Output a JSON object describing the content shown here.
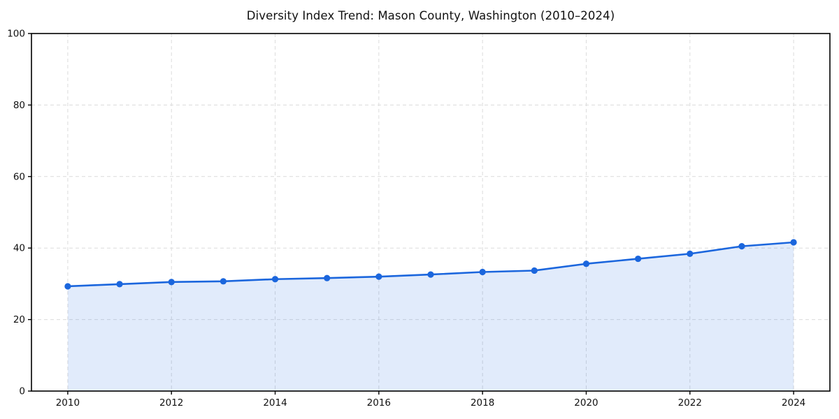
{
  "chart_data": {
    "type": "line",
    "title": "Diversity Index Trend: Mason County, Washington (2010–2024)",
    "xlabel": "",
    "ylabel": "",
    "x": [
      2010,
      2011,
      2012,
      2013,
      2014,
      2015,
      2016,
      2017,
      2018,
      2019,
      2020,
      2021,
      2022,
      2023,
      2024
    ],
    "series": [
      {
        "name": "Diversity Index",
        "values": [
          29.3,
          29.9,
          30.5,
          30.7,
          31.3,
          31.6,
          32.0,
          32.6,
          33.3,
          33.7,
          35.6,
          37.0,
          38.4,
          40.5,
          41.6
        ]
      }
    ],
    "xticks": [
      2010,
      2012,
      2014,
      2016,
      2018,
      2020,
      2022,
      2024
    ],
    "yticks": [
      0,
      20,
      40,
      60,
      80,
      100
    ],
    "xlim": [
      2009.3,
      2024.7
    ],
    "ylim": [
      0,
      100
    ],
    "grid": true,
    "grid_style": "dashed",
    "legend_position": "none",
    "area_fill": true,
    "colors": {
      "line": "#1b66dd",
      "marker": "#1b66dd",
      "fill": "#1b66dd",
      "fill_opacity": 0.13,
      "grid": "#dcdcdc",
      "axis": "#000000",
      "tick_label": "#111111",
      "background": "#ffffff"
    }
  }
}
